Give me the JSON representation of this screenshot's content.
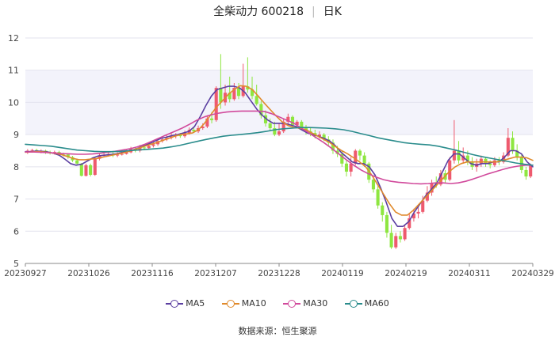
{
  "title": {
    "name": "全柴动力 600218",
    "period": "日K"
  },
  "source_label": "数据来源：",
  "source_name": "恒生聚源",
  "chart_data": {
    "type": "candlestick",
    "ylim": [
      5,
      12
    ],
    "yticks": [
      5,
      6,
      7,
      8,
      9,
      10,
      11,
      12
    ],
    "xticks": [
      "20230927",
      "20231026",
      "20231116",
      "20231207",
      "20231228",
      "20240119",
      "20240219",
      "20240311",
      "20240329"
    ],
    "colors": {
      "up": "#ee5a6e",
      "down": "#8ee640"
    },
    "candles": [
      [
        8.45,
        8.5,
        8.4,
        8.55
      ],
      [
        8.5,
        8.52,
        8.44,
        8.56
      ],
      [
        8.52,
        8.48,
        8.45,
        8.56
      ],
      [
        8.48,
        8.5,
        8.42,
        8.54
      ],
      [
        8.5,
        8.45,
        8.4,
        8.53
      ],
      [
        8.45,
        8.42,
        8.38,
        8.5
      ],
      [
        8.42,
        8.46,
        8.38,
        8.5
      ],
      [
        8.46,
        8.4,
        8.36,
        8.5
      ],
      [
        8.4,
        8.38,
        8.32,
        8.44
      ],
      [
        8.38,
        8.3,
        8.25,
        8.42
      ],
      [
        8.3,
        8.2,
        8.15,
        8.34
      ],
      [
        8.2,
        8.1,
        8.05,
        8.25
      ],
      [
        8.1,
        7.72,
        7.7,
        8.12
      ],
      [
        7.72,
        8.05,
        7.7,
        8.1
      ],
      [
        8.05,
        7.75,
        7.7,
        8.1
      ],
      [
        7.75,
        8.25,
        7.72,
        8.3
      ],
      [
        8.25,
        8.35,
        8.2,
        8.42
      ],
      [
        8.35,
        8.38,
        8.3,
        8.45
      ],
      [
        8.38,
        8.4,
        8.32,
        8.48
      ],
      [
        8.4,
        8.35,
        8.3,
        8.48
      ],
      [
        8.35,
        8.38,
        8.3,
        8.45
      ],
      [
        8.38,
        8.4,
        8.35,
        8.48
      ],
      [
        8.4,
        8.45,
        8.38,
        8.52
      ],
      [
        8.45,
        8.55,
        8.42,
        8.62
      ],
      [
        8.55,
        8.5,
        8.45,
        8.6
      ],
      [
        8.5,
        8.6,
        8.45,
        8.68
      ],
      [
        8.6,
        8.58,
        8.52,
        8.65
      ],
      [
        8.58,
        8.65,
        8.55,
        8.72
      ],
      [
        8.65,
        8.7,
        8.6,
        8.78
      ],
      [
        8.7,
        8.8,
        8.65,
        8.88
      ],
      [
        8.8,
        8.85,
        8.75,
        8.92
      ],
      [
        8.85,
        8.9,
        8.8,
        9.0
      ],
      [
        8.9,
        8.95,
        8.85,
        9.05
      ],
      [
        8.95,
        9.0,
        8.88,
        9.05
      ],
      [
        9.0,
        8.95,
        8.9,
        9.05
      ],
      [
        8.95,
        9.05,
        8.9,
        9.12
      ],
      [
        9.05,
        9.15,
        9.0,
        9.22
      ],
      [
        9.15,
        9.1,
        9.05,
        9.25
      ],
      [
        9.1,
        9.2,
        9.05,
        9.28
      ],
      [
        9.2,
        9.25,
        9.15,
        9.35
      ],
      [
        9.25,
        9.5,
        9.2,
        9.6
      ],
      [
        9.5,
        9.45,
        9.35,
        9.7
      ],
      [
        9.45,
        10.45,
        9.4,
        10.5
      ],
      [
        10.45,
        10.0,
        9.8,
        11.5
      ],
      [
        10.0,
        10.3,
        9.9,
        10.55
      ],
      [
        10.3,
        10.1,
        10.0,
        10.8
      ],
      [
        10.1,
        10.45,
        10.05,
        10.6
      ],
      [
        10.45,
        10.2,
        10.1,
        10.6
      ],
      [
        10.2,
        10.5,
        10.15,
        11.2
      ],
      [
        10.5,
        10.4,
        10.3,
        11.4
      ],
      [
        10.4,
        10.2,
        10.1,
        10.8
      ],
      [
        10.2,
        9.95,
        9.9,
        10.55
      ],
      [
        9.95,
        9.6,
        9.5,
        10.05
      ],
      [
        9.6,
        9.35,
        9.25,
        9.75
      ],
      [
        9.35,
        9.2,
        9.1,
        9.5
      ],
      [
        9.2,
        9.0,
        8.95,
        9.4
      ],
      [
        9.0,
        9.1,
        8.95,
        9.35
      ],
      [
        9.1,
        9.4,
        9.05,
        9.5
      ],
      [
        9.4,
        9.55,
        9.3,
        9.65
      ],
      [
        9.55,
        9.3,
        9.25,
        9.6
      ],
      [
        9.3,
        9.4,
        9.2,
        9.45
      ],
      [
        9.4,
        9.2,
        9.15,
        9.45
      ],
      [
        9.2,
        9.1,
        9.0,
        9.3
      ],
      [
        9.1,
        9.05,
        8.95,
        9.2
      ],
      [
        9.05,
        8.95,
        8.88,
        9.15
      ],
      [
        8.95,
        9.0,
        8.88,
        9.1
      ],
      [
        9.0,
        8.85,
        8.8,
        9.05
      ],
      [
        8.85,
        8.75,
        8.65,
        8.95
      ],
      [
        8.75,
        8.5,
        8.4,
        8.85
      ],
      [
        8.5,
        8.4,
        8.3,
        8.65
      ],
      [
        8.4,
        8.1,
        8.0,
        8.5
      ],
      [
        8.1,
        7.85,
        7.7,
        8.2
      ],
      [
        7.85,
        8.1,
        7.7,
        8.3
      ],
      [
        8.1,
        8.5,
        8.05,
        8.55
      ],
      [
        8.5,
        8.35,
        8.2,
        8.55
      ],
      [
        8.35,
        8.1,
        8.0,
        8.45
      ],
      [
        8.1,
        7.6,
        7.5,
        8.15
      ],
      [
        7.6,
        7.3,
        7.2,
        7.7
      ],
      [
        7.3,
        6.8,
        6.7,
        7.4
      ],
      [
        6.8,
        6.5,
        6.3,
        6.9
      ],
      [
        6.5,
        5.95,
        5.8,
        6.6
      ],
      [
        5.95,
        5.5,
        5.45,
        6.2
      ],
      [
        5.5,
        5.85,
        5.45,
        5.95
      ],
      [
        5.85,
        5.75,
        5.65,
        6.0
      ],
      [
        5.75,
        6.1,
        5.7,
        6.2
      ],
      [
        6.1,
        6.4,
        6.05,
        6.55
      ],
      [
        6.4,
        6.55,
        6.3,
        6.7
      ],
      [
        6.55,
        6.6,
        6.4,
        6.8
      ],
      [
        6.6,
        6.95,
        6.55,
        7.1
      ],
      [
        6.95,
        7.2,
        6.9,
        7.4
      ],
      [
        7.2,
        7.5,
        7.1,
        7.6
      ],
      [
        7.5,
        7.45,
        7.35,
        7.7
      ],
      [
        7.45,
        7.8,
        7.4,
        7.9
      ],
      [
        7.8,
        7.6,
        7.5,
        7.9
      ],
      [
        7.6,
        8.2,
        7.55,
        8.3
      ],
      [
        8.2,
        8.5,
        8.1,
        9.45
      ],
      [
        8.5,
        8.2,
        8.1,
        8.8
      ],
      [
        8.2,
        8.35,
        8.1,
        8.6
      ],
      [
        8.35,
        8.15,
        8.05,
        8.5
      ],
      [
        8.15,
        8.0,
        7.9,
        8.3
      ],
      [
        8.0,
        8.1,
        7.85,
        8.25
      ],
      [
        8.1,
        8.25,
        8.0,
        8.35
      ],
      [
        8.25,
        8.1,
        8.0,
        8.3
      ],
      [
        8.1,
        8.05,
        7.95,
        8.2
      ],
      [
        8.05,
        8.2,
        8.0,
        8.3
      ],
      [
        8.2,
        8.15,
        8.05,
        8.3
      ],
      [
        8.15,
        8.35,
        8.1,
        8.45
      ],
      [
        8.35,
        8.9,
        8.3,
        9.2
      ],
      [
        8.9,
        8.5,
        8.4,
        9.1
      ],
      [
        8.5,
        8.3,
        8.2,
        8.7
      ],
      [
        8.3,
        7.9,
        7.8,
        8.4
      ],
      [
        7.9,
        7.7,
        7.6,
        8.0
      ],
      [
        7.7,
        8.05,
        7.65,
        8.1
      ]
    ],
    "series": [
      {
        "name": "MA5",
        "color": "#5b3fa1",
        "y": [
          8.47,
          8.47,
          8.49,
          8.48,
          8.46,
          8.42,
          8.36,
          8.24,
          8.1,
          8.05,
          8.08,
          8.18,
          8.28,
          8.34,
          8.36,
          8.38,
          8.4,
          8.44,
          8.48,
          8.52,
          8.58,
          8.65,
          8.72,
          8.8,
          8.88,
          8.92,
          8.97,
          9.0,
          9.05,
          9.1,
          9.25,
          9.55,
          9.9,
          10.2,
          10.4,
          10.45,
          10.5,
          10.5,
          10.45,
          10.3,
          10.05,
          9.8,
          9.6,
          9.45,
          9.35,
          9.35,
          9.35,
          9.3,
          9.25,
          9.15,
          9.05,
          9.0,
          8.95,
          8.88,
          8.8,
          8.65,
          8.45,
          8.3,
          8.15,
          8.1,
          8.1,
          8.0,
          7.75,
          7.35,
          6.9,
          6.4,
          6.15,
          6.15,
          6.3,
          6.6,
          6.85,
          7.1,
          7.3,
          7.5,
          7.85,
          8.2,
          8.4,
          8.4,
          8.25,
          8.1,
          8.05,
          8.1,
          8.1,
          8.15,
          8.15,
          8.3,
          8.5,
          8.5,
          8.4,
          8.15,
          8.0
        ]
      },
      {
        "name": "MA10",
        "color": "#e08a2c",
        "y": [
          8.45,
          8.46,
          8.47,
          8.46,
          8.44,
          8.42,
          8.38,
          8.32,
          8.26,
          8.22,
          8.22,
          8.24,
          8.26,
          8.3,
          8.34,
          8.38,
          8.42,
          8.46,
          8.52,
          8.58,
          8.64,
          8.7,
          8.75,
          8.82,
          8.88,
          8.95,
          9.0,
          9.02,
          9.05,
          9.15,
          9.35,
          9.6,
          9.85,
          10.05,
          10.25,
          10.4,
          10.52,
          10.5,
          10.4,
          10.2,
          9.98,
          9.78,
          9.58,
          9.4,
          9.28,
          9.22,
          9.2,
          9.15,
          9.05,
          8.95,
          8.85,
          8.75,
          8.62,
          8.5,
          8.4,
          8.28,
          8.15,
          8.0,
          7.75,
          7.45,
          7.15,
          6.85,
          6.6,
          6.5,
          6.5,
          6.65,
          6.85,
          7.05,
          7.25,
          7.45,
          7.65,
          7.85,
          8.0,
          8.1,
          8.15,
          8.15,
          8.15,
          8.15,
          8.15,
          8.15,
          8.2,
          8.25,
          8.3,
          8.3,
          8.28,
          8.2
        ]
      },
      {
        "name": "MA30",
        "color": "#d14a9c",
        "y": [
          8.46,
          8.46,
          8.45,
          8.44,
          8.43,
          8.41,
          8.4,
          8.39,
          8.39,
          8.4,
          8.42,
          8.45,
          8.48,
          8.52,
          8.56,
          8.62,
          8.7,
          8.8,
          8.9,
          9.0,
          9.1,
          9.2,
          9.32,
          9.45,
          9.55,
          9.62,
          9.67,
          9.7,
          9.72,
          9.73,
          9.73,
          9.73,
          9.72,
          9.65,
          9.55,
          9.45,
          9.35,
          9.2,
          9.05,
          8.9,
          8.75,
          8.58,
          8.4,
          8.22,
          8.05,
          7.9,
          7.78,
          7.68,
          7.6,
          7.55,
          7.52,
          7.5,
          7.48,
          7.47,
          7.48,
          7.5,
          7.5,
          7.48,
          7.5,
          7.55,
          7.62,
          7.7,
          7.78,
          7.85,
          7.92,
          7.98,
          8.02,
          8.05,
          8.05
        ]
      },
      {
        "name": "MA60",
        "color": "#2a8c8c",
        "y": [
          8.7,
          8.68,
          8.66,
          8.64,
          8.6,
          8.56,
          8.52,
          8.5,
          8.48,
          8.47,
          8.47,
          8.48,
          8.5,
          8.52,
          8.54,
          8.56,
          8.58,
          8.62,
          8.67,
          8.73,
          8.79,
          8.85,
          8.9,
          8.95,
          8.98,
          9.0,
          9.03,
          9.06,
          9.1,
          9.15,
          9.18,
          9.2,
          9.22,
          9.22,
          9.21,
          9.2,
          9.18,
          9.15,
          9.1,
          9.03,
          8.97,
          8.9,
          8.85,
          8.8,
          8.75,
          8.72,
          8.7,
          8.68,
          8.64,
          8.58,
          8.52,
          8.45,
          8.38,
          8.32,
          8.27,
          8.22,
          8.17,
          8.12,
          8.08,
          8.05
        ]
      }
    ]
  }
}
